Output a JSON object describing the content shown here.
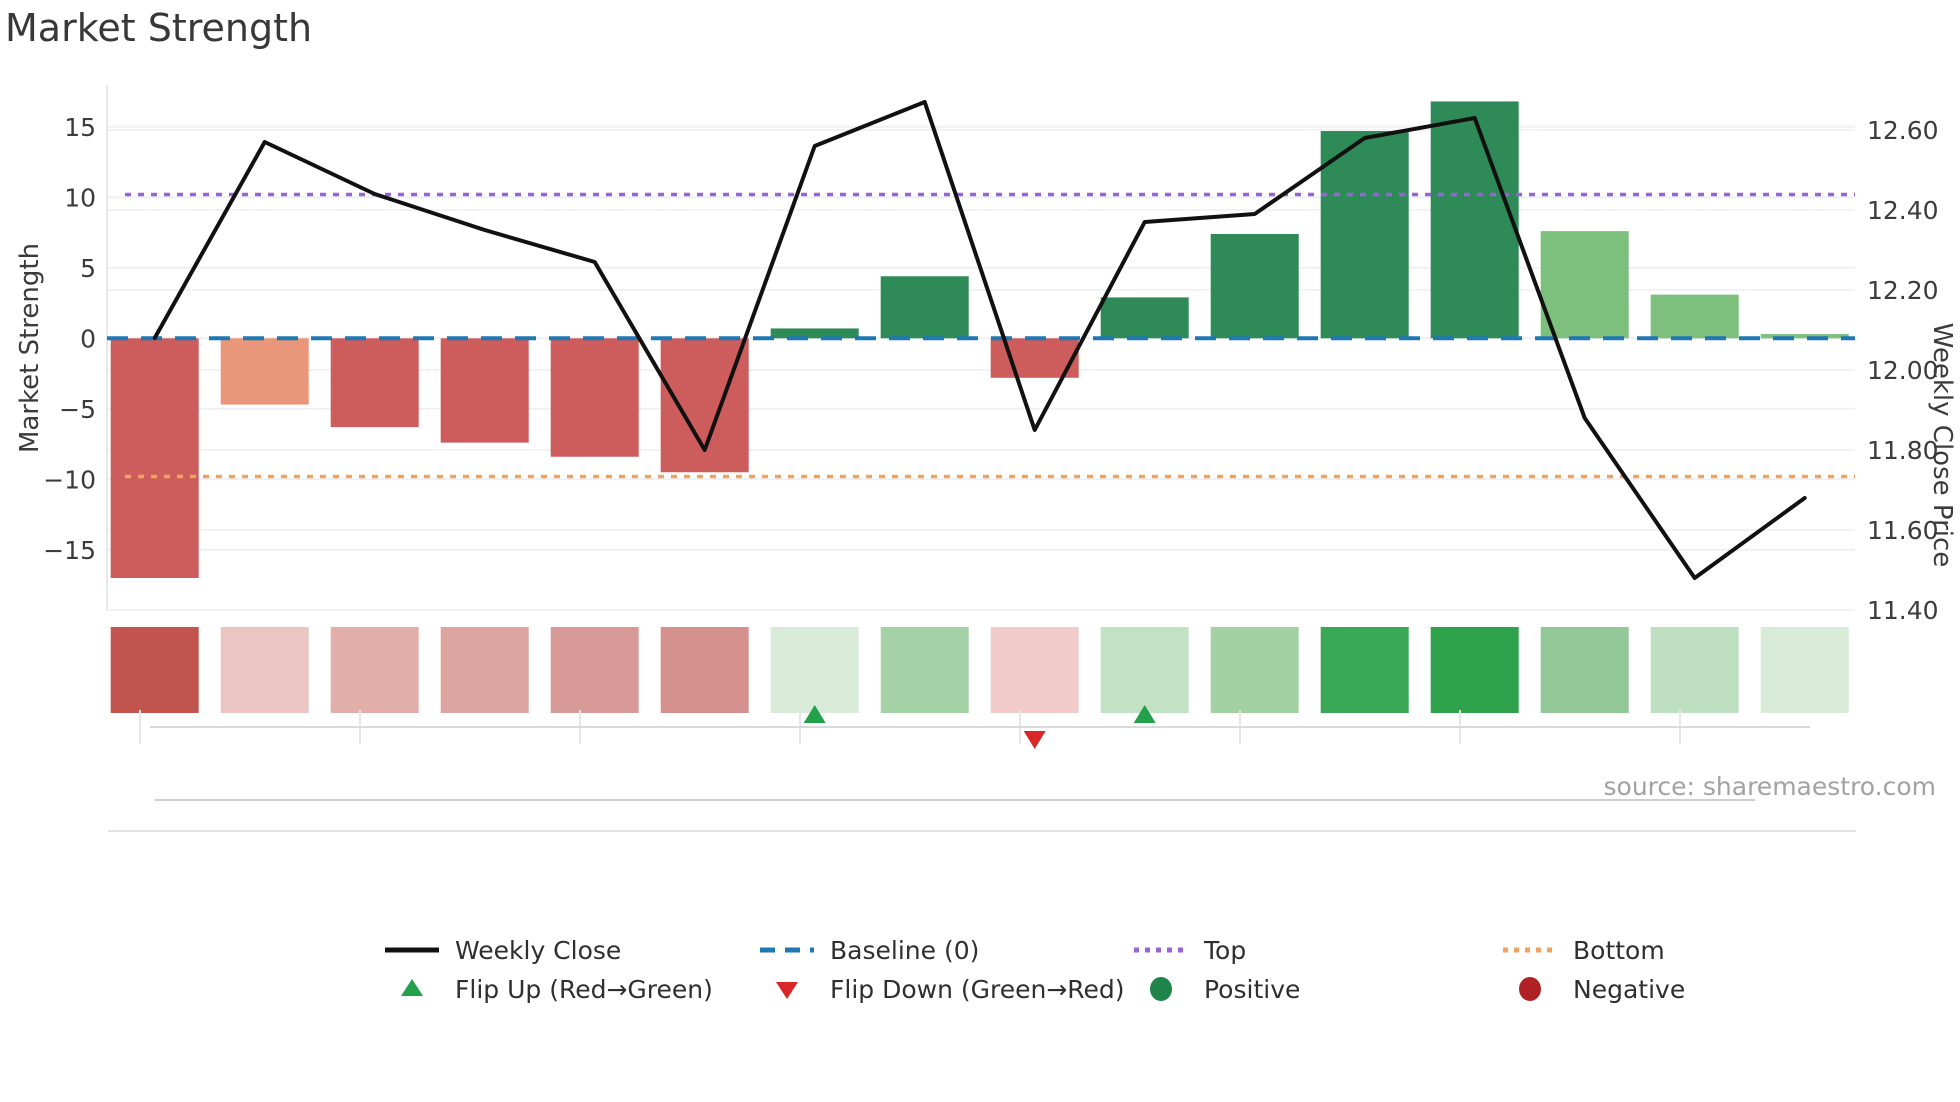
{
  "source": "source: sharemaestro.com",
  "chart_data": {
    "type": "combo-bar-line-heatmap",
    "title": "Market Strength",
    "n_weeks": 16,
    "bars": {
      "name": "Market Strength",
      "values": [
        -17.0,
        -4.7,
        -6.3,
        -7.4,
        -8.4,
        -9.5,
        0.7,
        4.4,
        -2.8,
        2.9,
        7.4,
        14.7,
        16.8,
        7.6,
        3.1,
        0.3
      ],
      "color_keys": [
        "red",
        "salmon",
        "red",
        "red",
        "red",
        "red",
        "green",
        "green",
        "red",
        "green",
        "green",
        "green",
        "green",
        "lightgreen",
        "lightgreen",
        "lightgreen"
      ]
    },
    "line": {
      "name": "Weekly Close",
      "values": [
        12.08,
        12.57,
        12.44,
        12.35,
        12.27,
        11.8,
        12.56,
        12.67,
        11.85,
        12.37,
        12.39,
        12.58,
        12.63,
        11.88,
        11.48,
        11.68
      ]
    },
    "reference_lines": {
      "baseline": {
        "label": "Baseline (0)",
        "value": 0
      },
      "top": {
        "label": "Top",
        "value": 10.2
      },
      "bottom": {
        "label": "Bottom",
        "value": -9.8
      }
    },
    "heatmap_row": {
      "colors": [
        "#c25450",
        "#eac5c1",
        "#e2aeaa",
        "#dda4a0",
        "#d89a97",
        "#d4918e",
        "#d7ebd8",
        "#a5d1a6",
        "#f0cbca",
        "#c2e2c3",
        "#a4d1a4",
        "#3aa854",
        "#2fa34c",
        "#92c897",
        "#bfe0c0",
        "#d7ebd8"
      ]
    },
    "flip_markers": [
      {
        "week": 7,
        "direction": "up"
      },
      {
        "week": 9,
        "direction": "down"
      },
      {
        "week": 10,
        "direction": "up"
      }
    ],
    "left_axis": {
      "label": "Market Strength",
      "ticks": [
        {
          "value": 15,
          "label": "15"
        },
        {
          "value": 10,
          "label": "10"
        },
        {
          "value": 5,
          "label": "5"
        },
        {
          "value": 0,
          "label": "0"
        },
        {
          "value": -5,
          "label": "−5"
        },
        {
          "value": -10,
          "label": "−10"
        },
        {
          "value": -15,
          "label": "−15"
        }
      ]
    },
    "right_axis": {
      "label": "Weekly Close Price",
      "ticks": [
        {
          "value": 12.6,
          "label": "12.60"
        },
        {
          "value": 12.4,
          "label": "12.40"
        },
        {
          "value": 12.2,
          "label": "12.20"
        },
        {
          "value": 12.0,
          "label": "12.00"
        },
        {
          "value": 11.8,
          "label": "11.80"
        },
        {
          "value": 11.6,
          "label": "11.60"
        },
        {
          "value": 11.4,
          "label": "11.40"
        }
      ]
    },
    "palette": {
      "red": "#cd5c5c",
      "salmon": "#e9967a",
      "green": "#2e8b57",
      "lightgreen": "#7dbf7d",
      "line": "#111111",
      "baseline": "#1f77b4",
      "top": "#9565d8",
      "bottom": "#f0a35e",
      "flip_up": "#22a04a",
      "flip_down": "#d92627",
      "positive": "#1e8449",
      "negative": "#b02125"
    }
  },
  "legend": {
    "row1": [
      {
        "label": "Weekly Close"
      },
      {
        "label": "Baseline (0)"
      },
      {
        "label": "Top"
      },
      {
        "label": "Bottom"
      }
    ],
    "row2": [
      {
        "label": "Flip Up (Red→Green)"
      },
      {
        "label": "Flip Down (Green→Red)"
      },
      {
        "label": "Positive"
      },
      {
        "label": "Negative"
      }
    ]
  }
}
